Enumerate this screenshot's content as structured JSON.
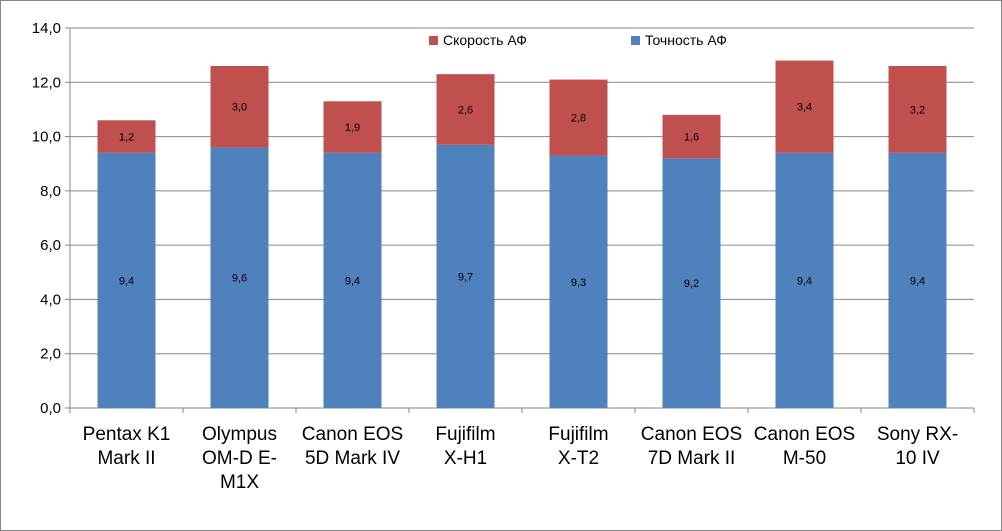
{
  "chart_data": {
    "type": "bar",
    "stacked": true,
    "categories": [
      [
        "Pentax K1",
        "Mark II"
      ],
      [
        "Olympus",
        "OM-D E-",
        "M1X"
      ],
      [
        "Canon EOS",
        "5D Mark IV"
      ],
      [
        "Fujifilm",
        "X-H1"
      ],
      [
        "Fujifilm",
        "X-T2"
      ],
      [
        "Canon EOS",
        "7D Mark II"
      ],
      [
        "Canon EOS",
        "M-50"
      ],
      [
        "Sony RX-",
        "10 IV"
      ]
    ],
    "series": [
      {
        "name": "Точность АФ",
        "color": "#4f81bd",
        "values": [
          9.4,
          9.6,
          9.4,
          9.7,
          9.3,
          9.2,
          9.4,
          9.4
        ],
        "labels": [
          "9,4",
          "9,6",
          "9,4",
          "9,7",
          "9,3",
          "9,2",
          "9,4",
          "9,4"
        ]
      },
      {
        "name": "Скорость АФ",
        "color": "#c0504d",
        "values": [
          1.2,
          3.0,
          1.9,
          2.6,
          2.8,
          1.6,
          3.4,
          3.2
        ],
        "labels": [
          "1,2",
          "3,0",
          "1,9",
          "2,6",
          "2,8",
          "1,6",
          "3,4",
          "3,2"
        ]
      }
    ],
    "ylim": [
      0,
      14
    ],
    "yticks": [
      0,
      2,
      4,
      6,
      8,
      10,
      12,
      14
    ],
    "ytick_labels": [
      "0,0",
      "2,0",
      "4,0",
      "6,0",
      "8,0",
      "10,0",
      "12,0",
      "14,0"
    ],
    "grid": true,
    "legend_placement": "top-center",
    "legend_order": [
      "Скорость АФ",
      "Точность АФ"
    ],
    "title": "",
    "xlabel": "",
    "ylabel": ""
  }
}
